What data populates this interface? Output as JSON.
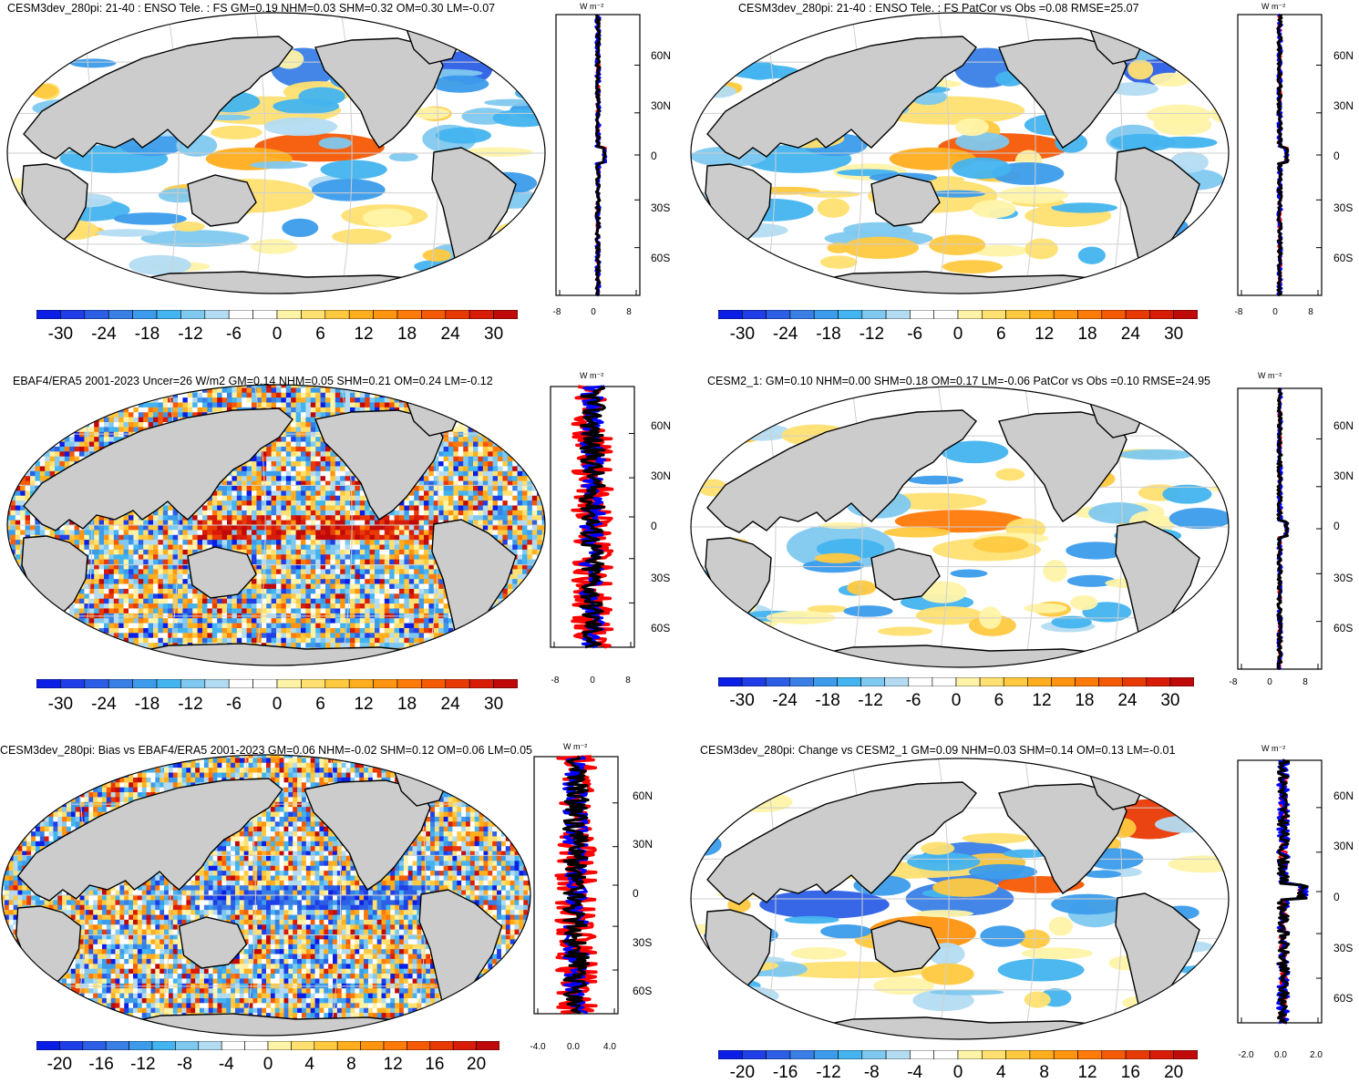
{
  "colors": {
    "scale": [
      "#0b1ee6",
      "#1f3ee8",
      "#2c5fe6",
      "#3a7fe6",
      "#3c9ceb",
      "#43b4ef",
      "#7fc8ef",
      "#b3dcf2",
      "#ffffff",
      "#ffffff",
      "#fff3a8",
      "#ffe070",
      "#ffc940",
      "#ffae1e",
      "#ff9410",
      "#ff7a08",
      "#f55a05",
      "#e83a05",
      "#d81c08",
      "#c00a0a"
    ],
    "land": "#cccccc",
    "grid": "#cfcfcf",
    "obs_line": "#ff0000",
    "model_line": "#000000",
    "blue_line": "#0000ff"
  },
  "panels": [
    {
      "id": "p1",
      "title": "CESM3dev_280pi: 21-40 : ENSO Tele. : FS GM=0.19 NHM=0.03 SHM=0.32 OM=0.30 LM=-0.07",
      "colorbar_labels": [
        "-30",
        "-24",
        "-18",
        "-12",
        "-6",
        "0",
        "6",
        "12",
        "18",
        "24",
        "30"
      ],
      "lat_labels": [
        "60N",
        "30N",
        "0",
        "30S",
        "60S"
      ],
      "profile_xlabels": [
        "-8",
        "0",
        "8"
      ],
      "unit": "W m⁻²"
    },
    {
      "id": "p2",
      "title": "CESM3dev_280pi: 21-40 : ENSO Tele. : FS PatCor vs Obs =0.08 RMSE=25.07",
      "colorbar_labels": [
        "-30",
        "-24",
        "-18",
        "-12",
        "-6",
        "0",
        "6",
        "12",
        "18",
        "24",
        "30"
      ],
      "lat_labels": [
        "60N",
        "30N",
        "0",
        "30S",
        "60S"
      ],
      "profile_xlabels": [
        "-8",
        "0",
        "8"
      ],
      "unit": "W m⁻²"
    },
    {
      "id": "p3",
      "title": "EBAF4/ERA5 2001-2023 Uncer=26 W/m2 GM=0.14 NHM=0.05 SHM=0.21 OM=0.24 LM=-0.12",
      "colorbar_labels": [
        "-30",
        "-24",
        "-18",
        "-12",
        "-6",
        "0",
        "6",
        "12",
        "18",
        "24",
        "30"
      ],
      "lat_labels": [
        "60N",
        "30N",
        "0",
        "30S",
        "60S"
      ],
      "profile_xlabels": [
        "-8",
        "0",
        "8"
      ],
      "unit": "W m⁻²"
    },
    {
      "id": "p4",
      "title": "CESM2_1: GM=0.10 NHM=0.00 SHM=0.18 OM=0.17 LM=-0.06 PatCor vs Obs =0.10 RMSE=24.95",
      "colorbar_labels": [
        "-30",
        "-24",
        "-18",
        "-12",
        "-6",
        "0",
        "6",
        "12",
        "18",
        "24",
        "30"
      ],
      "lat_labels": [
        "60N",
        "30N",
        "0",
        "30S",
        "60S"
      ],
      "profile_xlabels": [
        "-8",
        "0",
        "8"
      ],
      "unit": "W m⁻²"
    },
    {
      "id": "p5",
      "title": "CESM3dev_280pi: Bias vs EBAF4/ERA5 2001-2023 GM=0.06 NHM=-0.02 SHM=0.12 OM=0.06 LM=0.05",
      "colorbar_labels": [
        "-20",
        "-16",
        "-12",
        "-8",
        "-4",
        "0",
        "4",
        "8",
        "12",
        "16",
        "20"
      ],
      "lat_labels": [
        "60N",
        "30N",
        "0",
        "30S",
        "60S"
      ],
      "profile_xlabels": [
        "-4.0",
        "0.0",
        "4.0"
      ],
      "unit": "W m⁻²"
    },
    {
      "id": "p6",
      "title": "CESM3dev_280pi: Change vs CESM2_1 GM=0.09 NHM=0.03 SHM=0.14 OM=0.13 LM=-0.01",
      "colorbar_labels": [
        "-20",
        "-16",
        "-12",
        "-8",
        "-4",
        "0",
        "4",
        "8",
        "12",
        "16",
        "20"
      ],
      "lat_labels": [
        "60N",
        "30N",
        "0",
        "30S",
        "60S"
      ],
      "profile_xlabels": [
        "-2.0",
        "0.0",
        "2.0"
      ],
      "unit": "W m⁻²"
    }
  ]
}
